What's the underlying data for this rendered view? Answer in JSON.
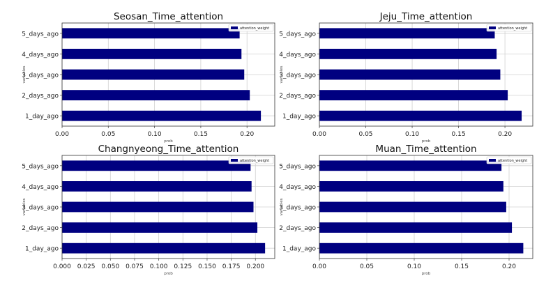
{
  "chart_data": [
    {
      "type": "bar",
      "orientation": "horizontal",
      "title": "Seosan_Time_attention",
      "xlabel": "prob",
      "ylabel": "variables",
      "categories": [
        "1_day_ago",
        "2_days_ago",
        "3_days_ago",
        "4_days_ago",
        "5_days_ago"
      ],
      "series": [
        {
          "name": "attention_weight",
          "values": [
            0.215,
            0.203,
            0.197,
            0.194,
            0.192
          ]
        }
      ],
      "xlim": [
        0,
        0.23
      ],
      "xticks": [
        0.0,
        0.05,
        0.1,
        0.15,
        0.2
      ],
      "tick_labels": [
        "0.00",
        "0.05",
        "0.10",
        "0.15",
        "0.20"
      ],
      "grid": true,
      "legend": "top-right",
      "color": "#000080"
    },
    {
      "type": "bar",
      "orientation": "horizontal",
      "title": "Jeju_Time_attention",
      "xlabel": "prob",
      "ylabel": "variables",
      "categories": [
        "1_day_ago",
        "2_days_ago",
        "3_days_ago",
        "4_days_ago",
        "5_days_ago"
      ],
      "series": [
        {
          "name": "attention_weight",
          "values": [
            0.218,
            0.203,
            0.195,
            0.191,
            0.189
          ]
        }
      ],
      "xlim": [
        0,
        0.23
      ],
      "xticks": [
        0.0,
        0.05,
        0.1,
        0.15,
        0.2
      ],
      "tick_labels": [
        "0.00",
        "0.05",
        "0.10",
        "0.15",
        "0.20"
      ],
      "grid": true,
      "legend": "top-right",
      "color": "#000080"
    },
    {
      "type": "bar",
      "orientation": "horizontal",
      "title": "Changnyeong_Time_attention",
      "xlabel": "prob",
      "ylabel": "variables",
      "categories": [
        "1_day_ago",
        "2_days_ago",
        "3_days_ago",
        "4_days_ago",
        "5_days_ago"
      ],
      "series": [
        {
          "name": "attention_weight",
          "values": [
            0.21,
            0.202,
            0.198,
            0.196,
            0.195
          ]
        }
      ],
      "xlim": [
        0,
        0.22
      ],
      "xticks": [
        0.0,
        0.025,
        0.05,
        0.075,
        0.1,
        0.125,
        0.15,
        0.175,
        0.2
      ],
      "tick_labels": [
        "0.000",
        "0.025",
        "0.050",
        "0.075",
        "0.100",
        "0.125",
        "0.150",
        "0.175",
        "0.200"
      ],
      "grid": true,
      "legend": "top-right",
      "color": "#000080"
    },
    {
      "type": "bar",
      "orientation": "horizontal",
      "title": "Muan_Time_attention",
      "xlabel": "prob",
      "ylabel": "variables",
      "categories": [
        "1_day_ago",
        "2_days_ago",
        "3_days_ago",
        "4_days_ago",
        "5_days_ago"
      ],
      "series": [
        {
          "name": "attention_weight",
          "values": [
            0.215,
            0.203,
            0.197,
            0.194,
            0.192
          ]
        }
      ],
      "xlim": [
        0,
        0.225
      ],
      "xticks": [
        0.0,
        0.05,
        0.1,
        0.15,
        0.2
      ],
      "tick_labels": [
        "0.00",
        "0.05",
        "0.10",
        "0.15",
        "0.20"
      ],
      "grid": true,
      "legend": "top-right",
      "color": "#000080"
    }
  ]
}
